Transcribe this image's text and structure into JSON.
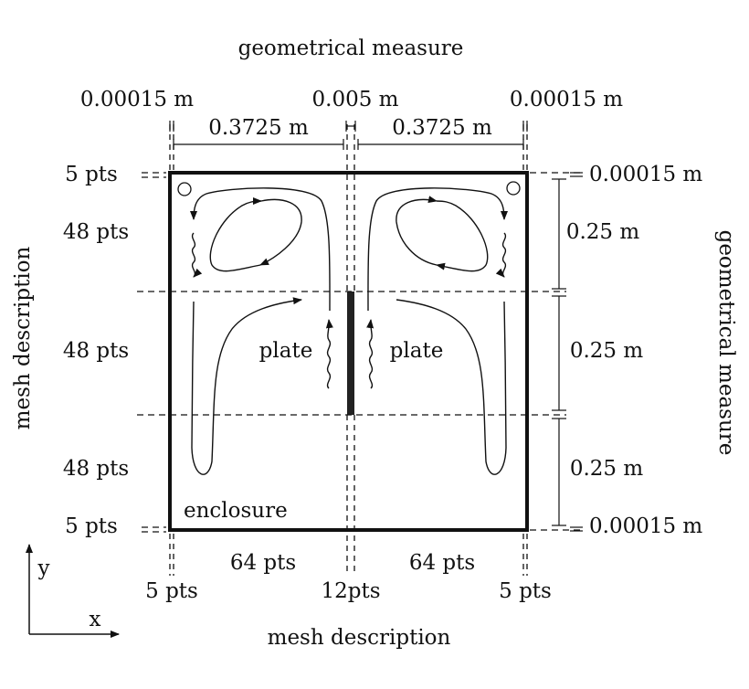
{
  "top": {
    "title": "geometrical measure",
    "left_thin": "0.00015 m",
    "center_plate": "0.005 m",
    "right_thin": "0.00015 m",
    "left_width": "0.3725 m",
    "right_width": "0.3725 m"
  },
  "left": {
    "title": "mesh description",
    "top_pts": "5 pts",
    "upper_pts": "48 pts",
    "middle_pts": "48 pts",
    "lower_pts": "48 pts",
    "bottom_pts": "5 pts"
  },
  "right": {
    "title": "geometrical measure",
    "top_thin": "0.00015 m",
    "upper_h": "0.25 m",
    "middle_h": "0.25 m",
    "lower_h": "0.25 m",
    "bottom_thin": "0.00015 m"
  },
  "bottom": {
    "title": "mesh description",
    "left_pts": "64 pts",
    "right_pts": "64 pts",
    "left_edge_pts": "5 pts",
    "center_pts": "12pts",
    "right_edge_pts": "5 pts"
  },
  "labels": {
    "plate_left": "plate",
    "plate_right": "plate",
    "enclosure": "enclosure"
  },
  "axes": {
    "x": "x",
    "y": "y"
  }
}
